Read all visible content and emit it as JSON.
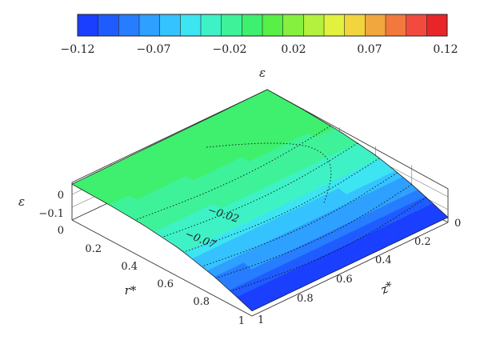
{
  "chart_data": {
    "type": "surface-3d",
    "title": "ε",
    "colorbar": {
      "min": -0.12,
      "max": 0.12,
      "tick_labels": [
        "−0.12",
        "−0.07",
        "−0.02",
        "0.02",
        "0.07",
        "0.12"
      ],
      "colors": [
        "#1a3fff",
        "#1f5cff",
        "#267dff",
        "#2ea0ff",
        "#35c3ff",
        "#3de4f2",
        "#3ef2c6",
        "#3ef29a",
        "#3ef06e",
        "#58f046",
        "#86f03e",
        "#b4f03e",
        "#e2f03e",
        "#f2d43e",
        "#f2a63e",
        "#f2783e",
        "#f24a3e",
        "#e8262a"
      ]
    },
    "axes": {
      "x": {
        "label": "r*",
        "range": [
          0,
          1
        ],
        "tick_labels": [
          "0",
          "0.2",
          "0.4",
          "0.6",
          "0.8",
          "1"
        ]
      },
      "y": {
        "label": "z*",
        "range": [
          0,
          1
        ],
        "tick_labels": [
          "0",
          "0.2",
          "0.4",
          "0.6",
          "0.8",
          "1"
        ]
      },
      "z": {
        "label": "ε",
        "range": [
          -0.15,
          0.02
        ],
        "tick_labels": [
          "0",
          "−0.1"
        ]
      }
    },
    "contour_labels": [
      "−0.02",
      "−0.07"
    ],
    "surface": {
      "description_values": "strain along r* from 0 to 1 varies from about 0 to about -0.13",
      "r_values": [
        0,
        0.2,
        0.4,
        0.6,
        0.8,
        1
      ],
      "z_values": [
        0,
        0.2,
        0.4,
        0.6,
        0.8,
        1
      ],
      "eps_at_r": [
        0.0,
        -0.005,
        -0.015,
        -0.035,
        -0.075,
        -0.13
      ]
    },
    "grid": true
  }
}
